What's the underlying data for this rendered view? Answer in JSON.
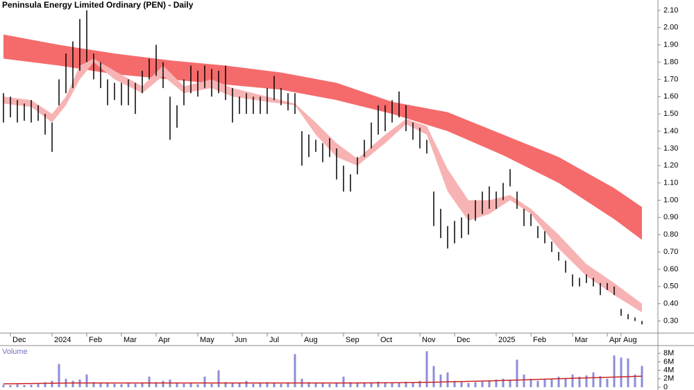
{
  "chart_data": [
    {
      "type": "hlc",
      "title": "Peninsula Energy Limited Ordinary (PEN) - Daily",
      "color": "#000000",
      "categories": [
        null,
        "Dec",
        null,
        null,
        null,
        null,
        null,
        "2024",
        null,
        null,
        null,
        null,
        "Feb",
        null,
        null,
        null,
        null,
        "Mar",
        null,
        null,
        null,
        null,
        "Apr",
        null,
        null,
        null,
        null,
        null,
        "May",
        null,
        null,
        null,
        null,
        "Jun",
        null,
        null,
        null,
        null,
        "Jul",
        null,
        null,
        null,
        null,
        "Aug",
        null,
        null,
        null,
        null,
        null,
        "Sep",
        null,
        null,
        null,
        null,
        "Oct",
        null,
        null,
        null,
        null,
        null,
        "Nov",
        null,
        null,
        null,
        null,
        "Dec",
        null,
        null,
        null,
        null,
        null,
        "2025",
        null,
        null,
        null,
        null,
        "Feb",
        null,
        null,
        null,
        null,
        null,
        "Mar",
        null,
        null,
        null,
        null,
        "Apr",
        null,
        "Aug",
        null,
        null,
        null
      ],
      "highs": [
        1.62,
        1.6,
        1.58,
        1.56,
        1.58,
        1.55,
        1.5,
        1.45,
        1.7,
        1.85,
        1.92,
        2.05,
        2.1,
        1.85,
        1.8,
        1.7,
        1.68,
        1.68,
        1.7,
        1.68,
        1.75,
        1.82,
        1.9,
        1.8,
        1.6,
        1.55,
        1.7,
        1.78,
        1.75,
        1.78,
        1.76,
        1.75,
        1.78,
        1.65,
        1.6,
        1.62,
        1.6,
        1.6,
        1.65,
        1.72,
        1.65,
        1.62,
        1.62,
        1.4,
        1.38,
        1.35,
        1.33,
        1.36,
        1.3,
        1.2,
        1.15,
        1.25,
        1.35,
        1.45,
        1.55,
        1.55,
        1.58,
        1.63,
        1.55,
        1.45,
        1.42,
        1.35,
        1.05,
        0.95,
        0.85,
        0.88,
        0.9,
        0.92,
        1.0,
        1.05,
        1.08,
        1.05,
        1.1,
        1.18,
        1.05,
        0.95,
        0.92,
        0.85,
        0.82,
        0.76,
        0.7,
        0.65,
        0.57,
        0.55,
        0.57,
        0.55,
        0.52,
        0.52,
        0.5,
        0.37,
        0.34,
        0.32,
        0.3
      ],
      "lows": [
        1.45,
        1.48,
        1.45,
        1.46,
        1.45,
        1.46,
        1.38,
        1.28,
        1.55,
        1.62,
        1.65,
        1.75,
        1.8,
        1.7,
        1.65,
        1.55,
        1.58,
        1.55,
        1.55,
        1.5,
        1.62,
        1.7,
        1.72,
        1.65,
        1.35,
        1.42,
        1.55,
        1.62,
        1.6,
        1.65,
        1.6,
        1.62,
        1.58,
        1.45,
        1.5,
        1.5,
        1.5,
        1.5,
        1.5,
        1.58,
        1.55,
        1.52,
        1.5,
        1.2,
        1.25,
        1.28,
        1.22,
        1.25,
        1.12,
        1.05,
        1.05,
        1.15,
        1.25,
        1.3,
        1.38,
        1.4,
        1.45,
        1.48,
        1.4,
        1.35,
        1.3,
        1.27,
        0.85,
        0.78,
        0.72,
        0.75,
        0.78,
        0.8,
        0.88,
        0.92,
        0.95,
        0.95,
        1.0,
        1.08,
        0.95,
        0.85,
        0.85,
        0.78,
        0.75,
        0.7,
        0.65,
        0.58,
        0.5,
        0.5,
        0.52,
        0.5,
        0.45,
        0.48,
        0.45,
        0.33,
        0.31,
        0.3,
        0.28
      ],
      "bands": [
        {
          "color": "#f56b6b",
          "x": [
            0,
            8,
            16,
            24,
            32,
            40,
            48,
            56,
            64,
            72,
            80,
            88,
            92
          ],
          "upper": [
            1.96,
            1.9,
            1.85,
            1.81,
            1.78,
            1.74,
            1.68,
            1.57,
            1.51,
            1.38,
            1.25,
            1.07,
            0.96
          ],
          "lower": [
            1.82,
            1.78,
            1.73,
            1.7,
            1.67,
            1.64,
            1.58,
            1.5,
            1.4,
            1.26,
            1.1,
            0.89,
            0.77
          ]
        },
        {
          "color": "#f7b3b3",
          "x": [
            0,
            4,
            7,
            9,
            11,
            13,
            16,
            20,
            23,
            26,
            30,
            33,
            38,
            42,
            45,
            48,
            51,
            55,
            58,
            61,
            64,
            67,
            70,
            73,
            76,
            80,
            84,
            88,
            92
          ],
          "upper": [
            1.6,
            1.58,
            1.5,
            1.6,
            1.78,
            1.82,
            1.75,
            1.66,
            1.78,
            1.66,
            1.7,
            1.65,
            1.6,
            1.56,
            1.45,
            1.33,
            1.24,
            1.38,
            1.47,
            1.43,
            1.18,
            1.0,
            1.0,
            1.03,
            0.95,
            0.8,
            0.63,
            0.52,
            0.4
          ],
          "lower": [
            1.56,
            1.54,
            1.45,
            1.55,
            1.7,
            1.8,
            1.7,
            1.62,
            1.72,
            1.62,
            1.65,
            1.6,
            1.57,
            1.55,
            1.38,
            1.25,
            1.2,
            1.33,
            1.44,
            1.38,
            1.05,
            0.88,
            0.92,
            1.0,
            0.92,
            0.72,
            0.56,
            0.45,
            0.35
          ]
        }
      ],
      "ylim": [
        0.27,
        2.16
      ],
      "yticks": [
        {
          "value": 0.3,
          "label": "0.30"
        },
        {
          "value": 0.4,
          "label": "0.40"
        },
        {
          "value": 0.5,
          "label": "0.50"
        },
        {
          "value": 0.6,
          "label": "0.60"
        },
        {
          "value": 0.7,
          "label": "0.70"
        },
        {
          "value": 0.8,
          "label": "0.80"
        },
        {
          "value": 0.9,
          "label": "0.90"
        },
        {
          "value": 1.0,
          "label": "1.00"
        },
        {
          "value": 1.1,
          "label": "1.10"
        },
        {
          "value": 1.2,
          "label": "1.20"
        },
        {
          "value": 1.3,
          "label": "1.30"
        },
        {
          "value": 1.4,
          "label": "1.40"
        },
        {
          "value": 1.5,
          "label": "1.50"
        },
        {
          "value": 1.6,
          "label": "1.60"
        },
        {
          "value": 1.7,
          "label": "1.70"
        },
        {
          "value": 1.8,
          "label": "1.80"
        },
        {
          "value": 1.9,
          "label": "1.90"
        },
        {
          "value": 2.0,
          "label": "2.00"
        },
        {
          "value": 2.1,
          "label": "2.10"
        }
      ]
    },
    {
      "type": "bar",
      "title": "Volume",
      "color": "#8c8cd8",
      "values": [
        0.6,
        0.5,
        0.7,
        0.5,
        0.6,
        0.8,
        1.2,
        1.5,
        5.5,
        2.0,
        1.5,
        1.8,
        3.0,
        1.2,
        1.0,
        0.9,
        0.8,
        0.7,
        0.9,
        0.8,
        1.0,
        2.5,
        1.2,
        1.5,
        1.8,
        1.0,
        0.8,
        0.9,
        0.7,
        2.5,
        0.8,
        4.0,
        1.2,
        1.0,
        0.9,
        1.5,
        0.8,
        1.0,
        1.2,
        0.9,
        0.8,
        1.0,
        7.8,
        2.0,
        1.2,
        1.0,
        0.9,
        0.8,
        1.0,
        2.5,
        1.2,
        1.0,
        0.9,
        1.1,
        1.3,
        1.2,
        1.0,
        1.1,
        1.3,
        1.2,
        1.5,
        8.5,
        5.0,
        3.0,
        3.5,
        1.5,
        1.2,
        1.0,
        1.2,
        1.3,
        1.5,
        1.8,
        2.0,
        1.8,
        6.5,
        3.0,
        2.0,
        1.5,
        1.8,
        2.0,
        2.5,
        2.2,
        3.0,
        2.5,
        2.8,
        3.5,
        2.6,
        2.0,
        7.5,
        7.0,
        6.8,
        3.0,
        5.0
      ],
      "average": {
        "color": "#cc2222",
        "x": [
          0,
          10,
          20,
          30,
          40,
          50,
          60,
          70,
          80,
          92
        ],
        "values": [
          0.8,
          1.0,
          1.0,
          1.0,
          1.0,
          1.0,
          1.1,
          1.5,
          2.0,
          2.6
        ]
      },
      "ylim": [
        0,
        9.5
      ],
      "yticks": [
        0,
        {
          "value": 2,
          "label": "2M"
        },
        {
          "value": 4,
          "label": "4M"
        },
        {
          "value": 6,
          "label": "6M"
        },
        {
          "value": 8,
          "label": "8M"
        }
      ]
    }
  ]
}
